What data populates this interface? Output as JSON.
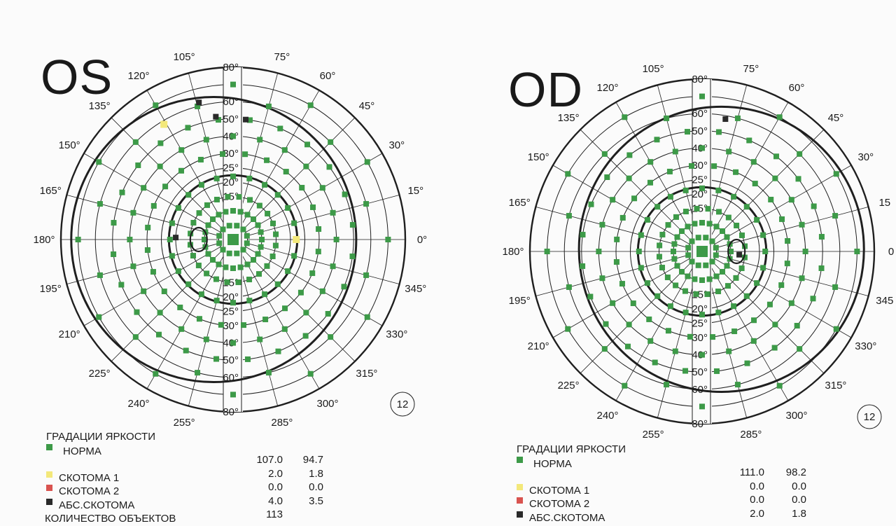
{
  "colors": {
    "norm": "#3d9a48",
    "scotoma1": "#f3e87a",
    "scotoma2": "#d9534f",
    "abs": "#2a2a2a",
    "line": "#1f1f1f"
  },
  "charts": [
    {
      "eye": "OS",
      "badge": "12",
      "legend": {
        "title": "ГРАДАЦИИ ЯРКОСТИ",
        "rows": [
          {
            "label": "НОРМА",
            "color": "norm",
            "v1": "",
            "v2": ""
          },
          {
            "label": "",
            "color": "",
            "v1": "107.0",
            "v2": "94.7"
          },
          {
            "label": "СКОТОМА 1",
            "color": "scotoma1",
            "v1": "2.0",
            "v2": "1.8"
          },
          {
            "label": "СКОТОМА 2",
            "color": "scotoma2",
            "v1": "0.0",
            "v2": "0.0"
          },
          {
            "label": "АБС.СКОТОМА",
            "color": "abs",
            "v1": "4.0",
            "v2": "3.5"
          },
          {
            "label": "КОЛИЧЕСТВО ОБЪЕКТОВ",
            "color": "",
            "v1": "113",
            "v2": ""
          }
        ]
      }
    },
    {
      "eye": "OD",
      "badge": "12",
      "legend": {
        "title": "ГРАДАЦИИ ЯРКОСТИ",
        "rows": [
          {
            "label": "НОРМА",
            "color": "norm",
            "v1": "",
            "v2": ""
          },
          {
            "label": "",
            "color": "",
            "v1": "111.0",
            "v2": "98.2"
          },
          {
            "label": "СКОТОМА 1",
            "color": "scotoma1",
            "v1": "0.0",
            "v2": "0.0"
          },
          {
            "label": "СКОТОМА 2",
            "color": "scotoma2",
            "v1": "0.0",
            "v2": "0.0"
          },
          {
            "label": "АБС.СКОТОМА",
            "color": "abs",
            "v1": "2.0",
            "v2": "1.8"
          }
        ]
      }
    }
  ],
  "chart_data": [
    {
      "type": "scatter",
      "title": "OS",
      "coordinate_system": "polar",
      "angle_labels": [
        "0°",
        "15°",
        "30°",
        "45°",
        "60°",
        "75°",
        "105°",
        "120°",
        "135°",
        "150°",
        "165°",
        "180°",
        "195°",
        "210°",
        "225°",
        "240°",
        "255°",
        "285°",
        "300°",
        "315°",
        "330°",
        "345°"
      ],
      "radius_labels_upper": [
        "80°",
        "60°",
        "50°",
        "40°",
        "30°",
        "25°",
        "20°",
        "15°"
      ],
      "radius_labels_lower": [
        "15°",
        "20°",
        "25°",
        "30°",
        "40°",
        "50°",
        "60°",
        "80°"
      ],
      "grid_radii_deg": [
        5,
        10,
        15,
        20,
        25,
        30,
        40,
        50,
        60,
        70,
        80
      ],
      "isopter_radius_deg": 17,
      "outer_isopter": {
        "center_offset_deg": [
          -18,
          0
        ],
        "radius_deg": 66
      },
      "blind_spot": {
        "angle_deg": 180,
        "ecc_deg": 12
      },
      "points": {
        "norm_rings": [
          {
            "ecc": 5,
            "step": 30,
            "offset": 15
          },
          {
            "ecc": 10,
            "step": 15,
            "offset": 0
          },
          {
            "ecc": 15,
            "step": 15,
            "offset": 7
          },
          {
            "ecc": 22,
            "step": 15,
            "offset": 0
          },
          {
            "ecc": 30,
            "step": 15,
            "offset": 7
          },
          {
            "ecc": 40,
            "step": 15,
            "offset": 0
          },
          {
            "ecc": 50,
            "step": 15,
            "offset": 7
          },
          {
            "ecc": 60,
            "step": 30,
            "offset": 15
          },
          {
            "ecc": 70,
            "step": 30,
            "offset": 0
          }
        ],
        "scotoma1": [
          {
            "angle": 0,
            "ecc": 22
          },
          {
            "angle": 121,
            "ecc": 58
          }
        ],
        "absolute": [
          {
            "angle": 104,
            "ecc": 62
          },
          {
            "angle": 98,
            "ecc": 52
          },
          {
            "angle": 84,
            "ecc": 50
          },
          {
            "angle": 178,
            "ecc": 20
          }
        ]
      }
    },
    {
      "type": "scatter",
      "title": "OD",
      "coordinate_system": "polar",
      "angle_labels": [
        "0",
        "15",
        "30°",
        "45°",
        "60°",
        "75°",
        "105°",
        "120°",
        "135°",
        "150°",
        "165°",
        "180°",
        "195°",
        "210°",
        "225°",
        "240°",
        "255°",
        "285°",
        "300°",
        "315°",
        "330°",
        "345"
      ],
      "radius_labels_upper": [
        "80°",
        "60°",
        "50°",
        "40°",
        "30°",
        "25°",
        "20°",
        "15°"
      ],
      "radius_labels_lower": [
        "15°",
        "20°",
        "25°",
        "30°",
        "40°",
        "50°",
        "60°",
        "80°"
      ],
      "grid_radii_deg": [
        5,
        10,
        15,
        20,
        25,
        30,
        40,
        50,
        60,
        70,
        80
      ],
      "isopter_radius_deg": 17,
      "outer_isopter": {
        "center_offset_deg": [
          18,
          -2
        ],
        "radius_deg": 66
      },
      "blind_spot": {
        "angle_deg": 0,
        "ecc_deg": 12
      },
      "points": {
        "norm_rings": [
          {
            "ecc": 5,
            "step": 30,
            "offset": 15
          },
          {
            "ecc": 10,
            "step": 15,
            "offset": 0
          },
          {
            "ecc": 15,
            "step": 15,
            "offset": 7
          },
          {
            "ecc": 22,
            "step": 15,
            "offset": 0
          },
          {
            "ecc": 30,
            "step": 15,
            "offset": 7
          },
          {
            "ecc": 40,
            "step": 15,
            "offset": 0
          },
          {
            "ecc": 50,
            "step": 15,
            "offset": 7
          },
          {
            "ecc": 60,
            "step": 30,
            "offset": 15
          },
          {
            "ecc": 70,
            "step": 30,
            "offset": 0
          }
        ],
        "scotoma1": [],
        "absolute": [
          {
            "angle": 80,
            "ecc": 58
          },
          {
            "angle": 355,
            "ecc": 13
          }
        ]
      }
    }
  ]
}
